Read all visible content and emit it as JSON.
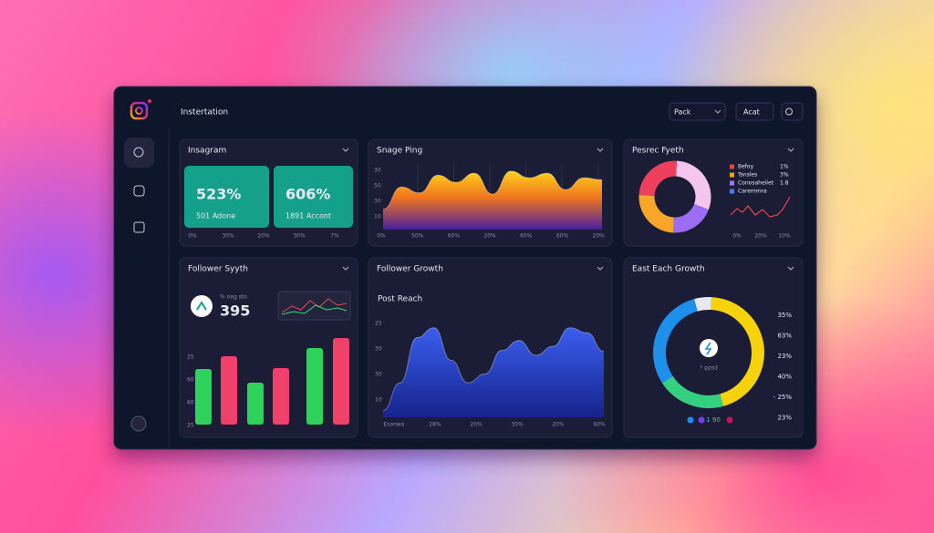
{
  "header": {
    "title": "Instertation",
    "buttons": [
      "Pack",
      "Acat"
    ]
  },
  "cards": [
    {
      "title": "Insagram",
      "tiles": [
        {
          "value": "523%",
          "label": "501 Adone"
        },
        {
          "value": "606%",
          "label": "1891 Accont"
        }
      ],
      "xaxis": [
        "0%",
        "30%",
        "20%",
        "30%",
        "7%"
      ]
    },
    {
      "title": "Snage Ping",
      "yaxis": [
        "30",
        "50",
        "30",
        "10"
      ],
      "xaxis": [
        "0%",
        "50%",
        "60%",
        "20%",
        "60%",
        "60%",
        "20%"
      ],
      "area": {
        "ylim": [
          0,
          100
        ],
        "values": [
          31,
          65,
          56,
          83,
          72,
          86,
          54,
          89,
          79,
          86,
          61,
          79,
          76
        ]
      }
    },
    {
      "title": "Pesrec Fyeth",
      "legend": [
        {
          "name": "Befoy",
          "value": "1%",
          "color": "#e0473f"
        },
        {
          "name": "Tsnsles",
          "value": "3%",
          "color": "#f2a323"
        },
        {
          "name": "Conosaheilet",
          "value": "1.8",
          "color": "#9c7bf0"
        },
        {
          "name": "Caremmra",
          "color": "#4f7df0"
        }
      ],
      "donut": {
        "values": [
          30,
          20,
          25,
          25
        ],
        "colors": [
          "#f4c6ee",
          "#9c6cf2",
          "#f7a62a",
          "#ee3f5c"
        ]
      },
      "xaxis": [
        "0%",
        "20%",
        "10%"
      ]
    },
    {
      "title": "Follower Syyth",
      "stat_label": "% oag sto",
      "stat": "395",
      "yaxis": [
        "25",
        "60",
        "60",
        "25"
      ],
      "bars": {
        "ylim": [
          0,
          100
        ],
        "values": [
          61,
          75,
          46,
          62,
          84,
          95
        ],
        "colors": [
          "#2fd35c",
          "#f0416b",
          "#2fd35c",
          "#f0416b",
          "#2fd35c",
          "#f0416b"
        ]
      }
    },
    {
      "title": "Follower Growth",
      "subtitle": "Post Reach",
      "yaxis": [
        "25",
        "30",
        "30",
        "10"
      ],
      "xaxis": [
        "Esanwa",
        "28%",
        "20%",
        "30%",
        "20%",
        "60%"
      ],
      "area": {
        "ylim": [
          0,
          100
        ],
        "values": [
          7,
          35,
          81,
          91,
          58,
          35,
          44,
          68,
          78,
          63,
          72,
          91,
          86,
          67
        ]
      }
    },
    {
      "title": "East Each Growth",
      "center": "? ppsd",
      "donut": {
        "values": [
          45,
          20,
          30,
          5
        ],
        "colors": [
          "#f5d20c",
          "#35d07f",
          "#1e8fea",
          "#e8e8f0"
        ]
      },
      "labels": [
        "35%",
        "63%",
        "23%",
        "40%",
        "- 25%",
        "23%"
      ],
      "legend": "1 90"
    }
  ]
}
